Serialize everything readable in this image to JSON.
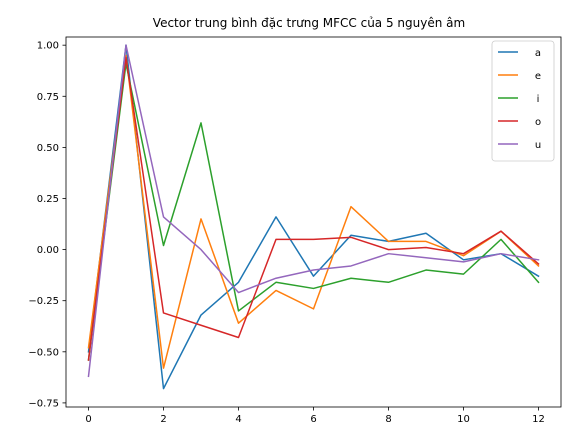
{
  "chart_data": {
    "type": "line",
    "title": "Vector trung bình đặc trưng MFCC của 5 nguyên âm",
    "xlabel": "",
    "ylabel": "",
    "x": [
      0,
      1,
      2,
      3,
      4,
      5,
      6,
      7,
      8,
      9,
      10,
      11,
      12
    ],
    "xlim": [
      -0.6,
      12.6
    ],
    "ylim": [
      -0.77,
      1.04
    ],
    "x_ticks": [
      0,
      2,
      4,
      6,
      8,
      10,
      12
    ],
    "y_ticks": [
      -0.75,
      -0.5,
      -0.25,
      0.0,
      0.25,
      0.5,
      0.75,
      1.0
    ],
    "y_tick_labels": [
      "−0.75",
      "−0.50",
      "−0.25",
      "0.00",
      "0.25",
      "0.50",
      "0.75",
      "1.00"
    ],
    "grid": false,
    "legend_position": "top-right",
    "series": [
      {
        "name": "a",
        "color": "#1f77b4",
        "values": [
          -0.5,
          1.0,
          -0.68,
          -0.32,
          -0.16,
          0.16,
          -0.13,
          0.07,
          0.04,
          0.08,
          -0.05,
          -0.02,
          -0.13
        ]
      },
      {
        "name": "e",
        "color": "#ff7f0e",
        "values": [
          -0.48,
          0.95,
          -0.58,
          0.15,
          -0.36,
          -0.2,
          -0.29,
          0.21,
          0.04,
          0.04,
          -0.03,
          0.09,
          -0.08
        ]
      },
      {
        "name": "i",
        "color": "#2ca02c",
        "values": [
          -0.54,
          0.91,
          0.02,
          0.62,
          -0.3,
          -0.16,
          -0.19,
          -0.14,
          -0.16,
          -0.1,
          -0.12,
          0.05,
          -0.16
        ]
      },
      {
        "name": "o",
        "color": "#d62728",
        "values": [
          -0.54,
          0.94,
          -0.31,
          -0.37,
          -0.43,
          0.05,
          0.05,
          0.06,
          0.0,
          0.01,
          -0.02,
          0.09,
          -0.07
        ]
      },
      {
        "name": "u",
        "color": "#9467bd",
        "values": [
          -0.62,
          1.0,
          0.16,
          0.0,
          -0.21,
          -0.14,
          -0.1,
          -0.08,
          -0.02,
          -0.04,
          -0.06,
          -0.02,
          -0.05
        ]
      }
    ]
  }
}
